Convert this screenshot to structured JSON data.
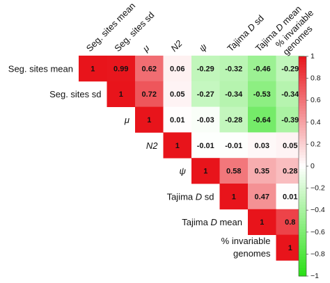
{
  "chart_data": {
    "type": "heatmap",
    "variables": [
      {
        "name": "Seg. sites mean",
        "style": "normal"
      },
      {
        "name": "Seg. sites sd",
        "style": "normal"
      },
      {
        "name": "μ",
        "style": "italic"
      },
      {
        "name": "N2",
        "style": "italic"
      },
      {
        "name": "ψ",
        "style": "italic"
      },
      {
        "name": "Tajima D sd",
        "style": "mixed",
        "parts": [
          [
            "Tajima ",
            "normal"
          ],
          [
            "D",
            "italic"
          ],
          [
            " sd",
            "normal"
          ]
        ]
      },
      {
        "name": "Tajima D mean",
        "style": "mixed",
        "parts": [
          [
            "Tajima ",
            "normal"
          ],
          [
            "D",
            "italic"
          ],
          [
            " mean",
            "normal"
          ]
        ]
      },
      {
        "name": "% invariable genomes",
        "style": "normal",
        "lines": [
          "% invariable",
          "genomes"
        ]
      }
    ],
    "matrix": [
      [
        1,
        0.99,
        0.62,
        0.06,
        -0.29,
        -0.32,
        -0.46,
        -0.29
      ],
      [
        null,
        1,
        0.72,
        0.05,
        -0.27,
        -0.34,
        -0.53,
        -0.34
      ],
      [
        null,
        null,
        1,
        0.01,
        -0.03,
        -0.28,
        -0.64,
        -0.39
      ],
      [
        null,
        null,
        null,
        1,
        -0.01,
        -0.01,
        0.03,
        0.05
      ],
      [
        null,
        null,
        null,
        null,
        1,
        0.58,
        0.35,
        0.28
      ],
      [
        null,
        null,
        null,
        null,
        null,
        1,
        0.47,
        0.01
      ],
      [
        null,
        null,
        null,
        null,
        null,
        null,
        1,
        0.8
      ],
      [
        null,
        null,
        null,
        null,
        null,
        null,
        null,
        1
      ]
    ],
    "colorbar": {
      "ticks": [
        "1",
        "0.8",
        "0.6",
        "0.4",
        "0.2",
        "0",
        "−0.2",
        "−0.4",
        "−0.6",
        "−0.8",
        "−1"
      ],
      "range": [
        -1,
        1
      ]
    },
    "colors": {
      "positive": "#e8141b",
      "neutral": "#ffffff",
      "negative": "#28e014"
    },
    "layout": "upper-triangle",
    "legend_placement": "right"
  }
}
